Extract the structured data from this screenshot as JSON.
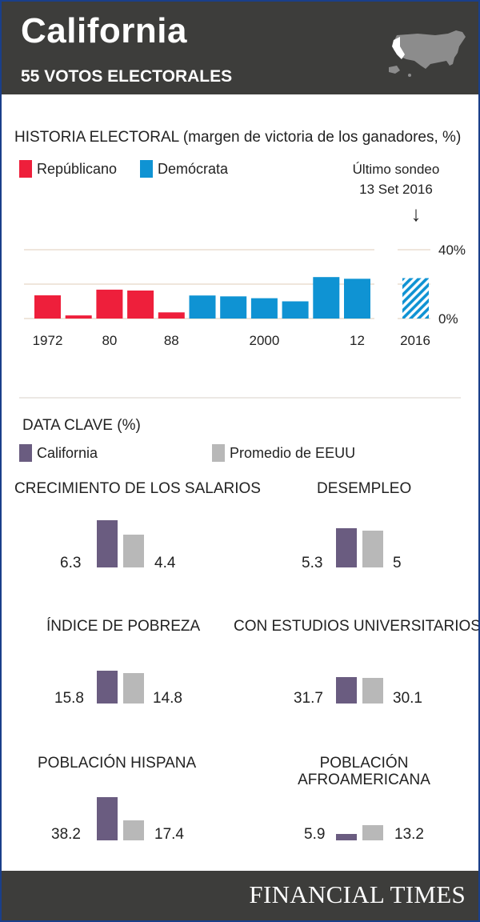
{
  "header": {
    "title": "California",
    "subtitle": "55 VOTOS ELECTORALES"
  },
  "history": {
    "title": "HISTORIA ELECTORAL (margen de victoria de los ganadores, %)",
    "legend": [
      {
        "label": "Repúblicano",
        "color": "#ee1f3b"
      },
      {
        "label": "Demócrata",
        "color": "#0f93d3"
      }
    ],
    "poll_note_line1": "Último sondeo",
    "poll_note_line2": "13 Set 2016",
    "poll_arrow": "↓"
  },
  "key_data": {
    "title": "DATA CLAVE (%)",
    "legend_ca": "California",
    "legend_us": "Promedio de EEUU",
    "colors": {
      "ca": "#6a5c80",
      "us": "#b8b8b8"
    }
  },
  "metrics": [
    {
      "title": "CRECIMIENTO DE LOS SALARIOS",
      "ca_label": "6.3",
      "us_label": "4.4"
    },
    {
      "title": "DESEMPLEO",
      "ca_label": "5.3",
      "us_label": "5"
    },
    {
      "title": "ÍNDICE DE POBREZA",
      "ca_label": "15.8",
      "us_label": "14.8"
    },
    {
      "title": "CON ESTUDIOS UNIVERSITARIOS",
      "ca_label": "31.7",
      "us_label": "30.1"
    },
    {
      "title": "POBLACIÓN HISPANA",
      "ca_label": "38.2",
      "us_label": "17.4"
    },
    {
      "title_line1": "POBLACIÓN",
      "title_line2": "AFROAMERICANA",
      "ca_label": "5.9",
      "us_label": "13.2"
    }
  ],
  "footer": {
    "brand": "FINANCIAL TIMES"
  },
  "chart_data": [
    {
      "type": "bar",
      "title": "HISTORIA ELECTORAL (margen de victoria de los ganadores, %)",
      "categories": [
        1972,
        1976,
        1980,
        1984,
        1988,
        1992,
        1996,
        2000,
        2004,
        2008,
        2012
      ],
      "tick_labels": [
        "1972",
        "80",
        "88",
        "2000",
        "12"
      ],
      "values": [
        13.5,
        1.8,
        16.8,
        16.3,
        3.6,
        13.4,
        12.9,
        11.8,
        10.0,
        24.1,
        23.1
      ],
      "winner": [
        "R",
        "R",
        "R",
        "R",
        "R",
        "D",
        "D",
        "D",
        "D",
        "D",
        "D"
      ],
      "poll": {
        "label": "2016",
        "value": 23.5,
        "winner": "D",
        "pattern": "hatched"
      },
      "ylim": [
        0,
        40
      ],
      "yticks": [
        "40%",
        "0%"
      ],
      "grid": true
    },
    {
      "type": "bar",
      "title": "DATA CLAVE (%)",
      "categories": [
        "CRECIMIENTO DE LOS SALARIOS",
        "DESEMPLEO",
        "ÍNDICE DE POBREZA",
        "CON ESTUDIOS UNIVERSITARIOS",
        "POBLACIÓN HISPANA",
        "POBLACIÓN AFROAMERICANA"
      ],
      "series": [
        {
          "name": "California",
          "values": [
            6.3,
            5.3,
            15.8,
            31.7,
            38.2,
            5.9
          ]
        },
        {
          "name": "Promedio de EEUU",
          "values": [
            4.4,
            5,
            14.8,
            30.1,
            17.4,
            13.2
          ]
        }
      ]
    }
  ]
}
